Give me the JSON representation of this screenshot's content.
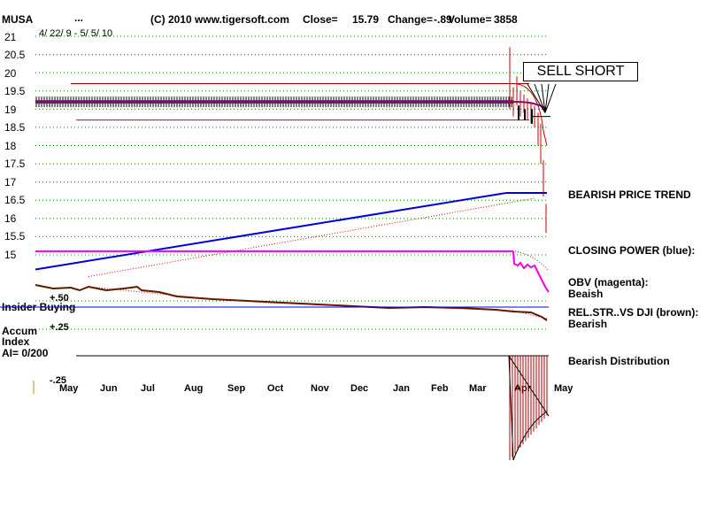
{
  "header": {
    "ticker": "MUSA",
    "dots": "...",
    "copyright": "(C) 2010 www.tigersoft.com",
    "close_label": "Close=",
    "close_value": "15.79",
    "change_label": "Change=",
    "change_value": "-.89",
    "volume_label": "Volume=",
    "volume_value": "3858",
    "date_range": "4/ 22/ 9 - 5/ 5/ 10"
  },
  "annotations": {
    "sell_short": "SELL SHORT",
    "bearish_price_trend": "BEARISH PRICE TREND",
    "closing_power": "CLOSING POWER (blue):",
    "obv_line1": "OBV (magenta):",
    "obv_line2": "Beaish",
    "relstr_line1": "REL.STR..VS DJI (brown):",
    "relstr_line2": "Bearish",
    "bearish_distribution": "Bearish Distribution",
    "insider_buying": "Insider Buying",
    "accum_line1": "Accum",
    "accum_line2": "Index",
    "ai_value": "AI= 0/200",
    "plus50": "+.50",
    "plus25": "+.25",
    "minus25": "-.25"
  },
  "colors": {
    "price_bar": "#cc0000",
    "trendline": "#8b0000",
    "closing_power": "#0000dd",
    "obv": "#ee00ee",
    "rel_strength": "#5a1a00",
    "ma": "#880088",
    "grid": "#008000",
    "accum": "#aa0000"
  },
  "chart_data": {
    "type": "line",
    "title": "MUSA",
    "y_ticks": [
      "21",
      "20.5",
      "20",
      "19.5",
      "19",
      "18.5",
      "18",
      "17.5",
      "17",
      "16.5",
      "16",
      "15.5",
      "15"
    ],
    "ylim": [
      15,
      21
    ],
    "x_ticks": [
      "May",
      "Jun",
      "Jul",
      "Aug",
      "Sep",
      "Oct",
      "Nov",
      "Dec",
      "Jan",
      "Feb",
      "Mar",
      "Apr",
      "May"
    ],
    "price_series": {
      "name": "price",
      "flat_level": 19.2,
      "final_points": [
        {
          "x": "Apr",
          "y": 19.2
        },
        {
          "x": "Apr",
          "y": 19.0
        },
        {
          "x": "Apr",
          "y": 18.8
        },
        {
          "x": "Apr",
          "y": 18.0
        },
        {
          "x": "May",
          "y": 16.8
        },
        {
          "x": "May",
          "y": 15.79
        }
      ],
      "spike_high": 20.7
    },
    "trendlines": [
      {
        "name": "resistance",
        "y": 19.7
      },
      {
        "name": "support",
        "y": 18.7
      }
    ],
    "closing_power_start": 14.6,
    "closing_power_end": 16.7,
    "obv_level": 15.1,
    "indicator_levels": {
      "insider_buying": 0.5,
      "accum_zero": 0,
      "accum_plus25": 0.25,
      "accum_minus25": -0.25
    }
  }
}
